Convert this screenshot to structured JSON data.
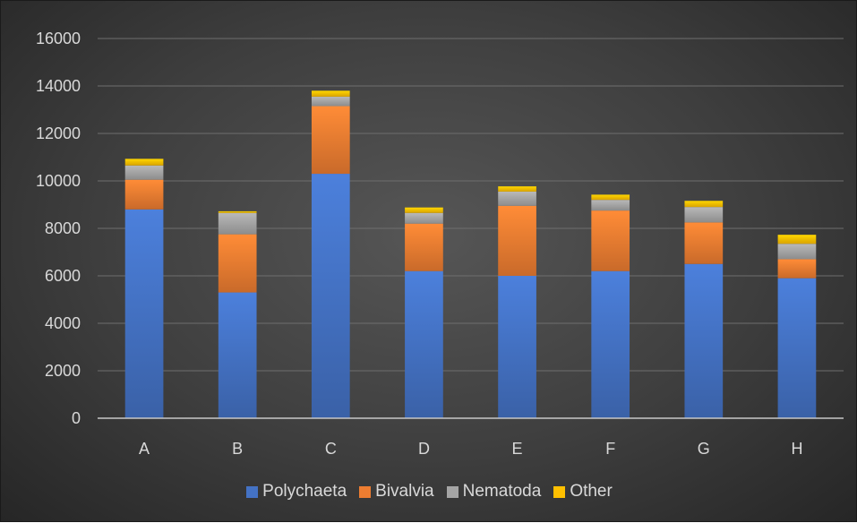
{
  "chart_data": {
    "type": "bar",
    "stacked": true,
    "categories": [
      "A",
      "B",
      "C",
      "D",
      "E",
      "F",
      "G",
      "H"
    ],
    "series": [
      {
        "name": "Polychaeta",
        "color": "#4472C4",
        "values": [
          8800,
          5300,
          10300,
          6200,
          6000,
          6200,
          6500,
          5900
        ]
      },
      {
        "name": "Bivalvia",
        "color": "#ED7D31",
        "values": [
          1250,
          2450,
          2850,
          2000,
          2950,
          2550,
          1750,
          800
        ]
      },
      {
        "name": "Nematoda",
        "color": "#A5A5A5",
        "values": [
          600,
          900,
          400,
          450,
          600,
          450,
          650,
          650
        ]
      },
      {
        "name": "Other",
        "color": "#FFC000",
        "values": [
          280,
          70,
          250,
          230,
          220,
          220,
          260,
          380
        ]
      }
    ],
    "ylim": [
      0,
      16000
    ],
    "yticks": [
      0,
      2000,
      4000,
      6000,
      8000,
      10000,
      12000,
      14000,
      16000
    ],
    "grid": true,
    "legend_position": "bottom"
  }
}
